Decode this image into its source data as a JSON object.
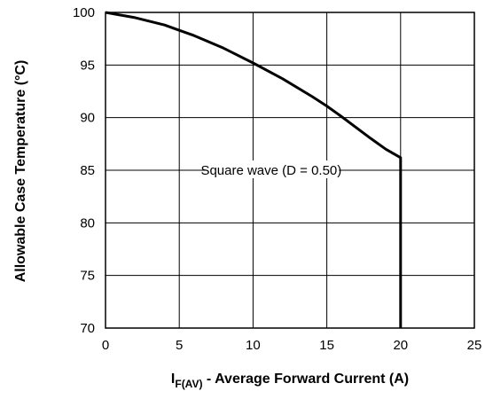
{
  "chart_data": {
    "type": "line",
    "title": "",
    "xlabel": {
      "symbol": "I",
      "subscript": "F(AV)",
      "text": " - Average Forward Current (A)"
    },
    "ylabel": "Allowable Case Temperature (°C)",
    "xlim": [
      0,
      25
    ],
    "ylim": [
      70,
      100
    ],
    "xticks": [
      0,
      5,
      10,
      15,
      20,
      25
    ],
    "yticks": [
      70,
      75,
      80,
      85,
      90,
      95,
      100
    ],
    "grid": true,
    "legend": "none",
    "series": [
      {
        "name": "Square wave (D = 0.50)",
        "color": "#000000",
        "x": [
          0,
          2,
          4,
          5,
          6,
          8,
          10,
          12,
          14,
          15,
          16,
          18,
          19,
          20,
          20,
          20
        ],
        "y": [
          100,
          99.5,
          98.8,
          98.3,
          97.8,
          96.6,
          95.2,
          93.7,
          92.0,
          91.1,
          90.1,
          88.0,
          87.0,
          86.2,
          78,
          70
        ]
      }
    ],
    "annotations": [
      {
        "text": "Square wave (D = 0.50)",
        "x": 7,
        "y": 85,
        "leader_x": [
          20,
          15.7
        ]
      }
    ]
  }
}
